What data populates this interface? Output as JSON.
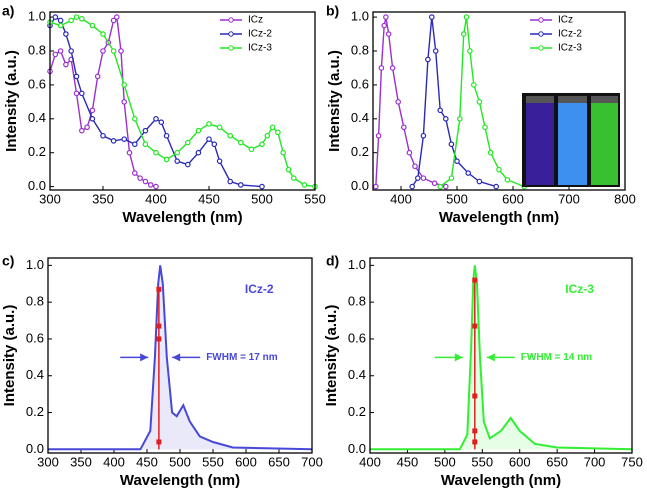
{
  "chart_data": [
    {
      "type": "line",
      "label": "a)",
      "xlabel": "Wavelength (nm)",
      "ylabel": "Intensity (a.u.)",
      "xlim": [
        300,
        550
      ],
      "xticks": [
        300,
        350,
        400,
        450,
        500,
        550
      ],
      "ylim": [
        -0.02,
        1.03
      ],
      "yticks": [
        {
          "value": 0,
          "label": "0.0"
        },
        0.2,
        0.4,
        0.6,
        0.8,
        {
          "value": 1,
          "label": "1.0"
        }
      ],
      "legend": "upper right",
      "markers": true,
      "series": [
        {
          "name": "ICz",
          "color": "#9b30d0",
          "x": [
            300,
            305,
            310,
            315,
            320,
            325,
            330,
            335,
            340,
            345,
            350,
            355,
            360,
            363,
            367,
            370,
            375,
            380,
            385,
            390,
            395,
            400
          ],
          "values": [
            0.68,
            0.78,
            0.8,
            0.72,
            0.75,
            0.55,
            0.33,
            0.35,
            0.45,
            0.65,
            0.8,
            0.85,
            0.98,
            1.0,
            0.8,
            0.5,
            0.2,
            0.08,
            0.05,
            0.03,
            0.01,
            0
          ]
        },
        {
          "name": "ICz-2",
          "color": "#2a2ab8",
          "x": [
            300,
            305,
            310,
            315,
            320,
            325,
            330,
            340,
            350,
            360,
            370,
            380,
            390,
            400,
            405,
            410,
            420,
            430,
            440,
            450,
            455,
            460,
            470,
            480,
            500
          ],
          "values": [
            0.95,
            1.0,
            0.98,
            0.9,
            0.8,
            0.65,
            0.55,
            0.4,
            0.3,
            0.27,
            0.28,
            0.25,
            0.33,
            0.4,
            0.38,
            0.3,
            0.15,
            0.13,
            0.2,
            0.28,
            0.25,
            0.15,
            0.03,
            0.01,
            0
          ]
        },
        {
          "name": "ICz-3",
          "color": "#22e822",
          "x": [
            300,
            310,
            320,
            325,
            330,
            340,
            350,
            360,
            370,
            380,
            390,
            400,
            410,
            420,
            430,
            440,
            450,
            460,
            470,
            480,
            490,
            500,
            505,
            510,
            515,
            520,
            525,
            530,
            540,
            550
          ],
          "values": [
            0.97,
            0.95,
            0.98,
            1.0,
            0.99,
            0.95,
            0.9,
            0.8,
            0.6,
            0.4,
            0.25,
            0.2,
            0.16,
            0.2,
            0.26,
            0.33,
            0.37,
            0.35,
            0.3,
            0.26,
            0.22,
            0.25,
            0.3,
            0.35,
            0.32,
            0.2,
            0.1,
            0.05,
            0.01,
            0
          ]
        }
      ]
    },
    {
      "type": "line",
      "label": "b)",
      "xlabel": "Wavelength (nm)",
      "ylabel": "Intensity (a.u.)",
      "xlim": [
        350,
        800
      ],
      "xticks": [
        400,
        500,
        600,
        700,
        800
      ],
      "ylim": [
        -0.02,
        1.03
      ],
      "yticks": [
        {
          "value": 0,
          "label": "0.0"
        },
        0.2,
        0.4,
        0.6,
        0.8,
        {
          "value": 1,
          "label": "1.0"
        }
      ],
      "legend": "upper right",
      "markers": true,
      "series": [
        {
          "name": "ICz",
          "color": "#9b30d0",
          "x": [
            355,
            360,
            365,
            370,
            373,
            378,
            385,
            395,
            405,
            415,
            425,
            440,
            460,
            480
          ],
          "values": [
            0,
            0.3,
            0.7,
            0.95,
            1.0,
            0.9,
            0.7,
            0.5,
            0.35,
            0.2,
            0.12,
            0.05,
            0.02,
            0
          ]
        },
        {
          "name": "ICz-2",
          "color": "#2a2ab8",
          "x": [
            420,
            430,
            440,
            448,
            455,
            462,
            470,
            480,
            490,
            500,
            520,
            540,
            570
          ],
          "values": [
            0,
            0.05,
            0.3,
            0.75,
            1.0,
            0.8,
            0.45,
            0.4,
            0.25,
            0.15,
            0.08,
            0.03,
            0
          ]
        },
        {
          "name": "ICz-3",
          "color": "#22e822",
          "x": [
            470,
            490,
            505,
            512,
            517,
            523,
            530,
            540,
            550,
            560,
            575,
            590,
            620
          ],
          "values": [
            0,
            0.05,
            0.4,
            0.9,
            1.0,
            0.8,
            0.6,
            0.5,
            0.35,
            0.2,
            0.1,
            0.04,
            0
          ]
        }
      ]
    },
    {
      "type": "line",
      "label": "c)",
      "xlabel": "Wavelength (nm)",
      "ylabel": "Intensity (a.u.)",
      "xlim": [
        300,
        700
      ],
      "xticks": [
        300,
        350,
        400,
        450,
        500,
        550,
        600,
        650,
        700
      ],
      "ylim": [
        -0.02,
        1.04
      ],
      "yticks": [
        {
          "value": 0,
          "label": "0.0"
        },
        0.2,
        0.4,
        0.6,
        0.8,
        {
          "value": 1,
          "label": "1.0"
        }
      ],
      "fill": true,
      "annotation": "ICz-2",
      "fwhm": "FWHM = 17 nm",
      "series": [
        {
          "color": "#4848d8",
          "x": [
            300,
            440,
            455,
            462,
            467,
            470,
            474,
            480,
            488,
            495,
            505,
            515,
            530,
            550,
            580,
            700
          ],
          "values": [
            0,
            0,
            0.1,
            0.5,
            0.9,
            1.0,
            0.9,
            0.5,
            0.2,
            0.18,
            0.24,
            0.15,
            0.07,
            0.04,
            0.01,
            0
          ]
        }
      ],
      "points": {
        "color": "#e02020",
        "x": [
          468,
          468,
          468,
          468
        ],
        "values": [
          0.04,
          0.6,
          0.67,
          0.87
        ]
      }
    },
    {
      "type": "line",
      "label": "d)",
      "xlabel": "Wavelength (nm)",
      "ylabel": "Intensity (a.u.)",
      "xlim": [
        400,
        750
      ],
      "xticks": [
        400,
        450,
        500,
        550,
        600,
        650,
        700,
        750
      ],
      "ylim": [
        -0.02,
        1.04
      ],
      "yticks": [
        {
          "value": 0,
          "label": "0.0"
        },
        0.2,
        0.4,
        0.6,
        0.8,
        {
          "value": 1,
          "label": "1.0"
        }
      ],
      "fill": true,
      "annotation": "ICz-3",
      "fwhm": "FWHM = 14 nm",
      "series": [
        {
          "color": "#33ee33",
          "x": [
            400,
            520,
            530,
            535,
            538,
            540,
            543,
            547,
            552,
            560,
            575,
            588,
            600,
            620,
            650,
            750
          ],
          "values": [
            0,
            0,
            0.08,
            0.55,
            0.92,
            1.0,
            0.9,
            0.5,
            0.15,
            0.06,
            0.1,
            0.17,
            0.1,
            0.03,
            0.01,
            0
          ]
        }
      ],
      "points": {
        "color": "#e02020",
        "x": [
          540,
          540,
          540,
          540,
          540
        ],
        "values": [
          0.04,
          0.1,
          0.29,
          0.67,
          0.92
        ]
      }
    }
  ]
}
